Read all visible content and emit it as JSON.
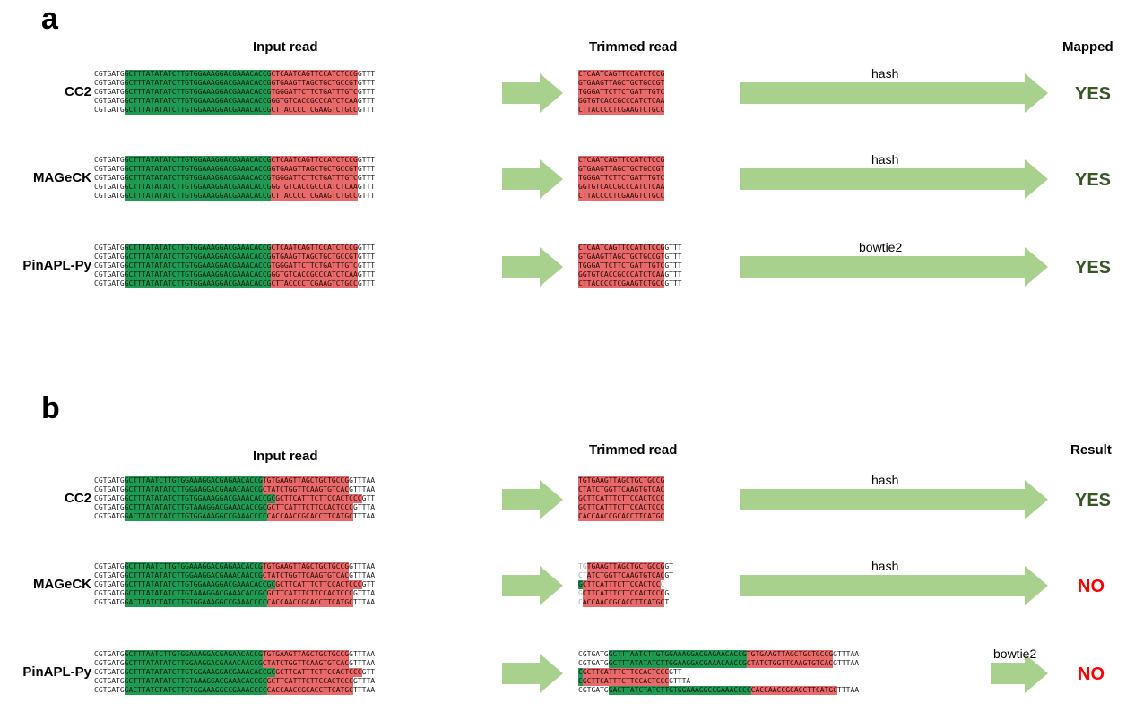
{
  "panels": [
    {
      "letter": "a",
      "headers": {
        "input": "Input read",
        "trimmed": "Trimmed read",
        "result": "Mapped"
      },
      "rows": [
        {
          "tool": "CC2",
          "input": [
            [
              [
                "w",
                "CGTGATG"
              ],
              [
                "g",
                "GCTTTATATATCTTGTGGAAAGGACGAAACACCG"
              ],
              [
                "r",
                "CTCAATCAGTTCCATCTCCG"
              ],
              [
                "w",
                "GTTT"
              ]
            ],
            [
              [
                "w",
                "CGTGATG"
              ],
              [
                "g",
                "GCTTTATATATCTTGTGGAAAGGACGAAACACCG"
              ],
              [
                "r",
                "GTGAAGTTAGCTGCTGCCGT"
              ],
              [
                "w",
                "GTTT"
              ]
            ],
            [
              [
                "w",
                "CGTGATG"
              ],
              [
                "g",
                "GCTTTATATATCTTGTGGAAAGGACGAAACACCG"
              ],
              [
                "r",
                "TGGGATTCTTCTGATTTGTC"
              ],
              [
                "w",
                "GTTT"
              ]
            ],
            [
              [
                "w",
                "CGTGATG"
              ],
              [
                "g",
                "GCTTTATATATCTTGTGGAAAGGACGAAACACCG"
              ],
              [
                "r",
                "GGTGTCACCGCCCATCTCAA"
              ],
              [
                "w",
                "GTTT"
              ]
            ],
            [
              [
                "w",
                "CGTGATG"
              ],
              [
                "g",
                "GCTTTATATATCTTGTGGAAAGGACGAAACACCG"
              ],
              [
                "r",
                "CTTACCCCTCGAAGTCTGCC"
              ],
              [
                "w",
                "GTTT"
              ]
            ]
          ],
          "trimmed": [
            [
              [
                "r",
                "CTCAATCAGTTCCATCTCCG"
              ]
            ],
            [
              [
                "r",
                "GTGAAGTTAGCTGCTGCCGT"
              ]
            ],
            [
              [
                "r",
                "TGGGATTCTTCTGATTTGTC"
              ]
            ],
            [
              [
                "r",
                "GGTGTCACCGCCCATCTCAA"
              ]
            ],
            [
              [
                "r",
                "CTTACCCCTCGAAGTCTGCC"
              ]
            ]
          ],
          "method": "hash",
          "result": "YES"
        },
        {
          "tool": "MAGeCK",
          "input": [
            [
              [
                "w",
                "CGTGATG"
              ],
              [
                "g",
                "GCTTTATATATCTTGTGGAAAGGACGAAACACCG"
              ],
              [
                "r",
                "CTCAATCAGTTCCATCTCCG"
              ],
              [
                "w",
                "GTTT"
              ]
            ],
            [
              [
                "w",
                "CGTGATG"
              ],
              [
                "g",
                "GCTTTATATATCTTGTGGAAAGGACGAAACACCG"
              ],
              [
                "r",
                "GTGAAGTTAGCTGCTGCCGT"
              ],
              [
                "w",
                "GTTT"
              ]
            ],
            [
              [
                "w",
                "CGTGATG"
              ],
              [
                "g",
                "GCTTTATATATCTTGTGGAAAGGACGAAACACCG"
              ],
              [
                "r",
                "TGGGATTCTTCTGATTTGTC"
              ],
              [
                "w",
                "GTTT"
              ]
            ],
            [
              [
                "w",
                "CGTGATG"
              ],
              [
                "g",
                "GCTTTATATATCTTGTGGAAAGGACGAAACACCG"
              ],
              [
                "r",
                "GGTGTCACCGCCCATCTCAA"
              ],
              [
                "w",
                "GTTT"
              ]
            ],
            [
              [
                "w",
                "CGTGATG"
              ],
              [
                "g",
                "GCTTTATATATCTTGTGGAAAGGACGAAACACCG"
              ],
              [
                "r",
                "CTTACCCCTCGAAGTCTGCC"
              ],
              [
                "w",
                "GTTT"
              ]
            ]
          ],
          "trimmed": [
            [
              [
                "r",
                "CTCAATCAGTTCCATCTCCG"
              ]
            ],
            [
              [
                "r",
                "GTGAAGTTAGCTGCTGCCGT"
              ]
            ],
            [
              [
                "r",
                "TGGGATTCTTCTGATTTGTC"
              ]
            ],
            [
              [
                "r",
                "GGTGTCACCGCCCATCTCAA"
              ]
            ],
            [
              [
                "r",
                "CTTACCCCTCGAAGTCTGCC"
              ]
            ]
          ],
          "method": "hash",
          "result": "YES"
        },
        {
          "tool": "PinAPL-Py",
          "input": [
            [
              [
                "w",
                "CGTGATG"
              ],
              [
                "g",
                "GCTTTATATATCTTGTGGAAAGGACGAAACACCG"
              ],
              [
                "r",
                "CTCAATCAGTTCCATCTCCG"
              ],
              [
                "w",
                "GTTT"
              ]
            ],
            [
              [
                "w",
                "CGTGATG"
              ],
              [
                "g",
                "GCTTTATATATCTTGTGGAAAGGACGAAACACCG"
              ],
              [
                "r",
                "GTGAAGTTAGCTGCTGCCGT"
              ],
              [
                "w",
                "GTTT"
              ]
            ],
            [
              [
                "w",
                "CGTGATG"
              ],
              [
                "g",
                "GCTTTATATATCTTGTGGAAAGGACGAAACACCG"
              ],
              [
                "r",
                "TGGGATTCTTCTGATTTGTC"
              ],
              [
                "w",
                "GTTT"
              ]
            ],
            [
              [
                "w",
                "CGTGATG"
              ],
              [
                "g",
                "GCTTTATATATCTTGTGGAAAGGACGAAACACCG"
              ],
              [
                "r",
                "GGTGTCACCGCCCATCTCAA"
              ],
              [
                "w",
                "GTTT"
              ]
            ],
            [
              [
                "w",
                "CGTGATG"
              ],
              [
                "g",
                "GCTTTATATATCTTGTGGAAAGGACGAAACACCG"
              ],
              [
                "r",
                "CTTACCCCTCGAAGTCTGCC"
              ],
              [
                "w",
                "GTTT"
              ]
            ]
          ],
          "trimmed": [
            [
              [
                "r",
                "CTCAATCAGTTCCATCTCCG"
              ],
              [
                "w",
                "GTTT"
              ]
            ],
            [
              [
                "r",
                "GTGAAGTTAGCTGCTGCCGT"
              ],
              [
                "w",
                "GTTT"
              ]
            ],
            [
              [
                "r",
                "TGGGATTCTTCTGATTTGTC"
              ],
              [
                "w",
                "GTTT"
              ]
            ],
            [
              [
                "r",
                "GGTGTCACCGCCCATCTCAA"
              ],
              [
                "w",
                "GTTT"
              ]
            ],
            [
              [
                "r",
                "CTTACCCCTCGAAGTCTGCC"
              ],
              [
                "w",
                "GTTT"
              ]
            ]
          ],
          "method": "bowtie2",
          "result": "YES"
        }
      ]
    },
    {
      "letter": "b",
      "headers": {
        "input": "Input read",
        "trimmed": "Trimmed read",
        "result": "Result"
      },
      "rows": [
        {
          "tool": "CC2",
          "input": [
            [
              [
                "w",
                "CGTGATG"
              ],
              [
                "g",
                "GCTTTAATCTTGTGGAAAGGACGAGAACACCG"
              ],
              [
                "r",
                "TGTGAAGTTAGCTGCTGCCG"
              ],
              [
                "w",
                "GTTTAA"
              ]
            ],
            [
              [
                "w",
                "CGTGATG"
              ],
              [
                "g",
                "GCTTTATATATCTTGGAAGGACGAAACAACCG"
              ],
              [
                "r",
                "CTATCTGGTTCAAGTGTCAC"
              ],
              [
                "w",
                "GTTTAA"
              ]
            ],
            [
              [
                "w",
                "CGTGATG"
              ],
              [
                "g",
                "GCTTTATATATCTTGTGGAAAGGACGAAACACCGC"
              ],
              [
                "r",
                "GCTTCATTTCTTCCACTCCC"
              ],
              [
                "w",
                "GTT"
              ]
            ],
            [
              [
                "w",
                "CGTGATG"
              ],
              [
                "g",
                "GCTTTATATATCTTGTAAAGGACGAAACACCGC"
              ],
              [
                "r",
                "GCTTCATTTCTTCCACTCCC"
              ],
              [
                "w",
                "GTTTA"
              ]
            ],
            [
              [
                "w",
                "CGTGATG"
              ],
              [
                "g",
                "GACTTATCTATCTTGTGGAAAGGCCGAAACCCC"
              ],
              [
                "r",
                "CACCAACCGCACCTTCATGC"
              ],
              [
                "w",
                "TTTAA"
              ]
            ]
          ],
          "trimmed": [
            [
              [
                "r",
                "TGTGAAGTTAGCTGCTGCCG"
              ]
            ],
            [
              [
                "r",
                "CTATCTGGTTCAAGTGTCAC"
              ]
            ],
            [
              [
                "r",
                "GCTTCATTTCTTCCACTCCC"
              ]
            ],
            [
              [
                "r",
                "GCTTCATTTCTTCCACTCCC"
              ]
            ],
            [
              [
                "r",
                "CACCAACCGCACCTTCATGC"
              ]
            ]
          ],
          "method": "hash",
          "result": "YES"
        },
        {
          "tool": "MAGeCK",
          "input": [
            [
              [
                "w",
                "CGTGATG"
              ],
              [
                "g",
                "GCTTTAATCTTGTGGAAAGGACGAGAACACCG"
              ],
              [
                "r",
                "TGTGAAGTTAGCTGCTGCCG"
              ],
              [
                "w",
                "GTTTAA"
              ]
            ],
            [
              [
                "w",
                "CGTGATG"
              ],
              [
                "g",
                "GCTTTATATATCTTGGAAGGACGAAACAACCG"
              ],
              [
                "r",
                "CTATCTGGTTCAAGTGTCAC"
              ],
              [
                "w",
                "GTTTAA"
              ]
            ],
            [
              [
                "w",
                "CGTGATG"
              ],
              [
                "g",
                "GCTTTATATATCTTGTGGAAAGGACGAAACACCGC"
              ],
              [
                "r",
                "GCTTCATTTCTTCCACTCCC"
              ],
              [
                "w",
                "GTT"
              ]
            ],
            [
              [
                "w",
                "CGTGATG"
              ],
              [
                "g",
                "GCTTTATATATCTTGTAAAGGACGAAACACCGC"
              ],
              [
                "r",
                "GCTTCATTTCTTCCACTCCC"
              ],
              [
                "w",
                "GTTTA"
              ]
            ],
            [
              [
                "w",
                "CGTGATG"
              ],
              [
                "g",
                "GACTTATCTATCTTGTGGAAAGGCCGAAACCCC"
              ],
              [
                "r",
                "CACCAACCGCACCTTCATGC"
              ],
              [
                "w",
                "TTTAA"
              ]
            ]
          ],
          "trimmed": [
            [
              [
                "gy",
                "TG"
              ],
              [
                "r",
                "TGAAGTTAGCTGCTGCCG"
              ],
              [
                "w",
                "GT"
              ]
            ],
            [
              [
                "gy",
                "CT"
              ],
              [
                "r",
                "ATCTGGTTCAAGTGTCAC"
              ],
              [
                "w",
                "GT"
              ]
            ],
            [
              [
                "g",
                "G"
              ],
              [
                "r",
                "CTTCATTTCTTCCACTCC"
              ],
              [
                "gy",
                "C"
              ]
            ],
            [
              [
                "gy",
                "G"
              ],
              [
                "r",
                "CTTCATTTCTTCCACTCCC"
              ],
              [
                "w",
                "G"
              ]
            ],
            [
              [
                "gy",
                "C"
              ],
              [
                "r",
                "ACCAACCGCACCTTCATGC"
              ],
              [
                "w",
                "T"
              ]
            ]
          ],
          "method": "hash",
          "result": "NO"
        },
        {
          "tool": "PinAPL-Py",
          "input": [
            [
              [
                "w",
                "CGTGATG"
              ],
              [
                "g",
                "GCTTTAATCTTGTGGAAAGGACGAGAACACCG"
              ],
              [
                "r",
                "TGTGAAGTTAGCTGCTGCCG"
              ],
              [
                "w",
                "GTTTAA"
              ]
            ],
            [
              [
                "w",
                "CGTGATG"
              ],
              [
                "g",
                "GCTTTATATATCTTGGAAGGACGAAACAACCG"
              ],
              [
                "r",
                "CTATCTGGTTCAAGTGTCAC"
              ],
              [
                "w",
                "GTTTAA"
              ]
            ],
            [
              [
                "w",
                "CGTGATG"
              ],
              [
                "g",
                "GCTTTATATATCTTGTGGAAAGGACGAAACACCGC"
              ],
              [
                "r",
                "GCTTCATTTCTTCCACTCCC"
              ],
              [
                "w",
                "GTT"
              ]
            ],
            [
              [
                "w",
                "CGTGATG"
              ],
              [
                "g",
                "GCTTTATATATCTTGTAAAGGACGAAACACCGC"
              ],
              [
                "r",
                "GCTTCATTTCTTCCACTCCC"
              ],
              [
                "w",
                "GTTTA"
              ]
            ],
            [
              [
                "w",
                "CGTGATG"
              ],
              [
                "g",
                "GACTTATCTATCTTGTGGAAAGGCCGAAACCCC"
              ],
              [
                "r",
                "CACCAACCGCACCTTCATGC"
              ],
              [
                "w",
                "TTTAA"
              ]
            ]
          ],
          "trimmed": [
            [
              [
                "w",
                "CGTGATG"
              ],
              [
                "g",
                "GCTTTAATCTTGTGGAAAGGACGAGAACACCG"
              ],
              [
                "r",
                "TGTGAAGTTAGCTGCTGCCG"
              ],
              [
                "w",
                "GTTTAA"
              ]
            ],
            [
              [
                "w",
                "CGTGATG"
              ],
              [
                "g",
                "GCTTTATATATCTTGGAAGGACGAAACAACCG"
              ],
              [
                "r",
                "CTATCTGGTTCAAGTGTCAC"
              ],
              [
                "w",
                "GTTTAA"
              ]
            ],
            [
              [
                "g",
                "C"
              ],
              [
                "r",
                "GCTTCATTTCTTCCACTCCC"
              ],
              [
                "w",
                "GTT"
              ]
            ],
            [
              [
                "g",
                "C"
              ],
              [
                "r",
                "GCTTCATTTCTTCCACTCCC"
              ],
              [
                "w",
                "GTTTA"
              ]
            ],
            [
              [
                "w",
                "CGTGATG"
              ],
              [
                "g",
                "GACTTATCTATCTTGTGGAAAGGCCGAAACCCC"
              ],
              [
                "r",
                "CACCAACCGCACCTTCATGC"
              ],
              [
                "w",
                "TTTAA"
              ]
            ]
          ],
          "method": "bowtie2",
          "result": "NO"
        }
      ]
    }
  ],
  "colors": {
    "guide_scaffold": "#1e9a52",
    "sgRNA": "#e96a6a",
    "arrow": "#a9d18e",
    "yes": "#375623",
    "no": "#ff0000"
  }
}
